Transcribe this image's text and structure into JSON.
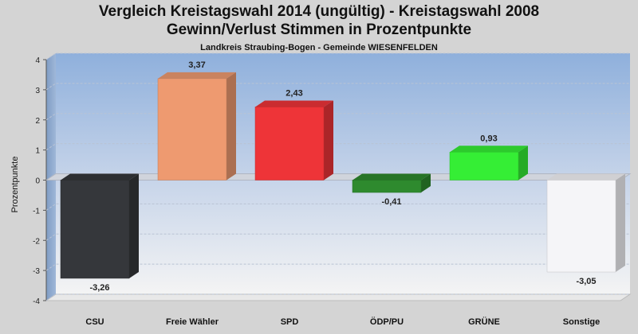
{
  "chart_data": {
    "type": "bar",
    "title": "Vergleich Kreistagswahl 2014 (ungültig) - Kreistagswahl 2008",
    "subtitle": "Gewinn/Verlust Stimmen in Prozentpunkte",
    "caption": "Landkreis Straubing-Bogen - Gemeinde WIESENFELDEN",
    "ylabel": "Prozentpunkte",
    "ylim": [
      -4,
      4
    ],
    "yticks": [
      4,
      3,
      2,
      1,
      0,
      -1,
      -2,
      -3,
      -4
    ],
    "categories": [
      "CSU",
      "Freie Wähler",
      "SPD",
      "ÖDP/PU",
      "GRÜNE",
      "Sonstige"
    ],
    "values": [
      -3.26,
      3.37,
      2.43,
      -0.41,
      0.93,
      -3.05
    ],
    "value_labels": [
      "-3,26",
      "3,37",
      "2,43",
      "-0,41",
      "0,93",
      "-3,05"
    ],
    "colors": [
      "#35373b",
      "#ee9a70",
      "#ee3438",
      "#2e8a2e",
      "#35ee35",
      "#f5f5f8"
    ],
    "grid": true
  }
}
